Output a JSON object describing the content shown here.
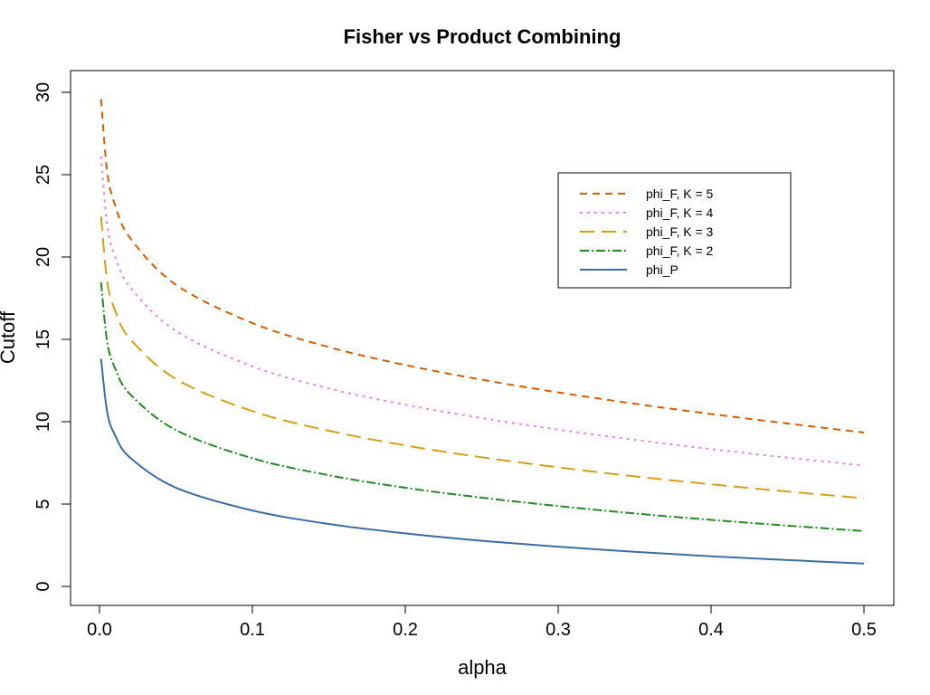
{
  "chart_data": {
    "type": "line",
    "title": "Fisher vs Product Combining",
    "xlabel": "alpha",
    "ylabel": "Cutoff",
    "xlim": [
      0,
      0.5
    ],
    "ylim": [
      0,
      30
    ],
    "xticks": [
      "0.0",
      "0.1",
      "0.2",
      "0.3",
      "0.4",
      "0.5"
    ],
    "yticks": [
      "0",
      "5",
      "10",
      "15",
      "20",
      "25",
      "30"
    ],
    "grid": false,
    "legend_position": "top-right",
    "x": [
      0.001,
      0.005,
      0.01,
      0.02,
      0.05,
      0.1,
      0.15,
      0.2,
      0.25,
      0.3,
      0.35,
      0.4,
      0.45,
      0.5
    ],
    "series": [
      {
        "name": "phi_F, K = 5",
        "color": "#D55E00",
        "dash": "8,6",
        "values": [
          29.59,
          25.19,
          23.21,
          21.16,
          18.31,
          15.99,
          14.53,
          13.44,
          12.55,
          11.78,
          11.09,
          10.47,
          9.89,
          9.34
        ]
      },
      {
        "name": "phi_F, K = 4",
        "color": "#EE82EE",
        "dash": "3,5",
        "values": [
          26.12,
          21.95,
          20.09,
          18.17,
          15.51,
          13.36,
          12.02,
          11.03,
          10.22,
          9.52,
          8.9,
          8.34,
          7.82,
          7.34
        ]
      },
      {
        "name": "phi_F, K = 3",
        "color": "#D4A017",
        "dash": "16,8",
        "values": [
          22.46,
          18.55,
          16.81,
          15.03,
          12.59,
          10.64,
          9.45,
          8.56,
          7.84,
          7.23,
          6.68,
          6.2,
          5.76,
          5.35
        ]
      },
      {
        "name": "phi_F, K = 2",
        "color": "#228B22",
        "dash": "10,3,2,3",
        "values": [
          18.47,
          14.86,
          13.28,
          11.67,
          9.49,
          7.78,
          6.75,
          5.99,
          5.39,
          4.88,
          4.43,
          4.04,
          3.69,
          3.36
        ]
      },
      {
        "name": "phi_P",
        "color": "#3A6EA5",
        "dash": "",
        "values": [
          13.82,
          10.6,
          9.21,
          7.82,
          5.99,
          4.61,
          3.79,
          3.22,
          2.77,
          2.41,
          2.1,
          1.83,
          1.6,
          1.39
        ]
      }
    ]
  }
}
